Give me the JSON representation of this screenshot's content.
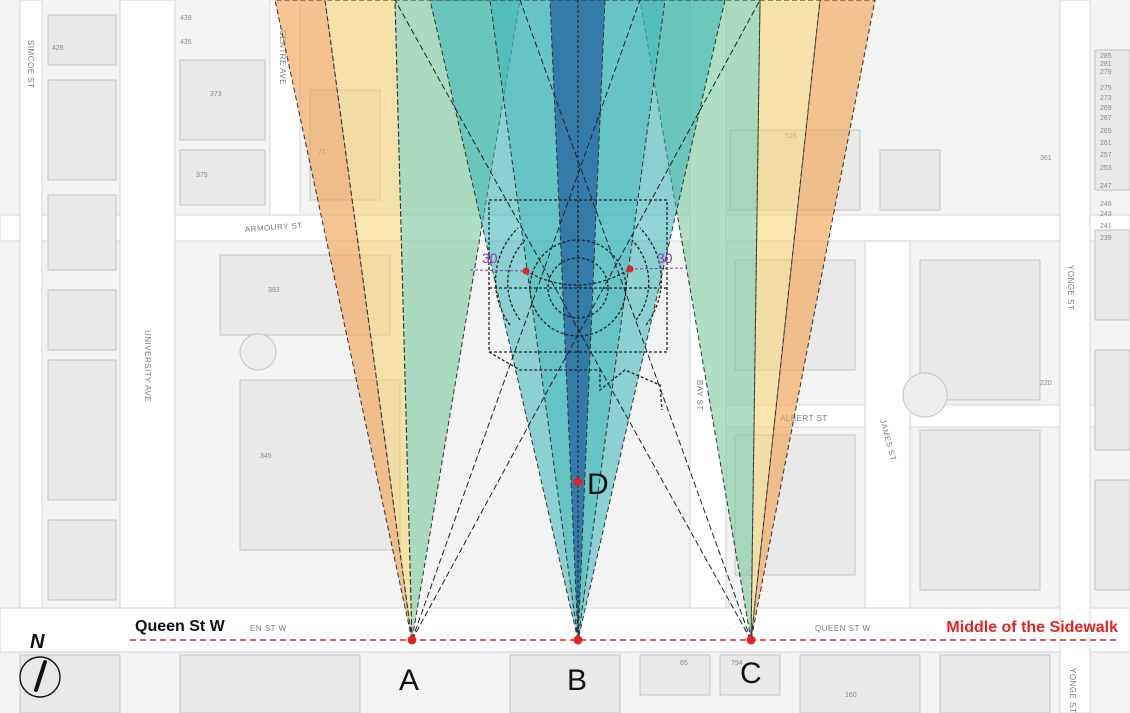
{
  "streets": {
    "queen_st_w": "Queen St W",
    "queen_st_w_map": "EN ST W",
    "queen_st_w_map_right": "QUEEN ST W",
    "armoury_st": "ARMOURY ST",
    "albert_st": "ALBERT ST",
    "james_st": "JAMES ST",
    "university_ave": "UNIVERSITY AVE",
    "centre_ave": "CENTRE AVE",
    "simcoe_st": "SIMCOE ST",
    "yonge_st": "YONGE ST",
    "yonge_st_bottom": "YONGE ST",
    "bay_st": "BAY ST"
  },
  "sidewalk_label": "Middle of the Sidewalk",
  "viewpoints": {
    "a": "A",
    "b": "B",
    "c": "C",
    "d": "D"
  },
  "angles": {
    "left": "30",
    "right": "30"
  },
  "north_label": "N",
  "parcels": [
    "439",
    "435",
    "426",
    "373",
    "71",
    "375",
    "525",
    "393",
    "361",
    "345",
    "220",
    "65",
    "794",
    "160"
  ],
  "yonge_numbers": [
    "285",
    "281",
    "279",
    "275",
    "273",
    "269",
    "267",
    "265",
    "261",
    "257",
    "253",
    "247",
    "248",
    "243",
    "241",
    "239"
  ],
  "colors": {
    "cone_orange": "#f0a24e",
    "cone_yellow": "#f6d36a",
    "cone_green": "#74c79a",
    "cone_teal": "#37b4b6",
    "cone_blue": "#2a6fa3",
    "sidewalk_line": "#e02424",
    "angle_label": "#8a3fb3"
  }
}
